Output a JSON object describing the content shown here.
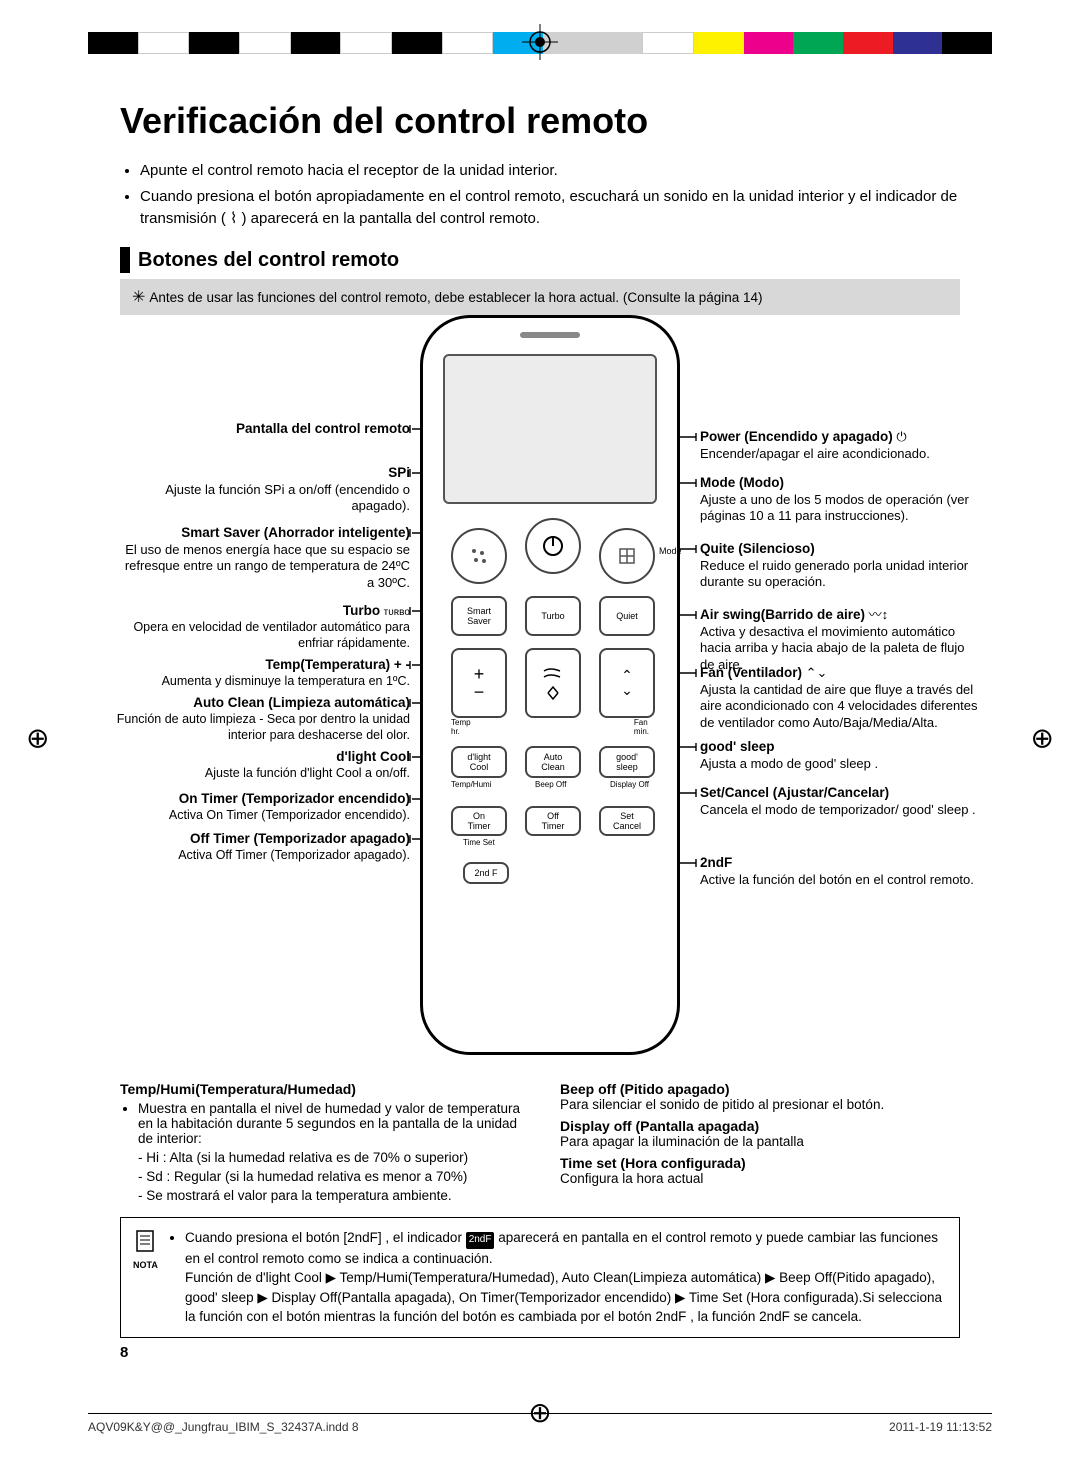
{
  "printbar_colors": [
    "#000000",
    "#ffffff",
    "#000000",
    "#ffffff",
    "#000000",
    "#ffffff",
    "#000000",
    "#ffffff",
    "#00aeef",
    "#d0d0d0",
    "#d0d0d0",
    "#ffffff",
    "#fff200",
    "#ec008c",
    "#00a651",
    "#ed1c24",
    "#2e3192",
    "#000000"
  ],
  "title": "Verificación del control remoto",
  "intro": [
    "Apunte el control remoto hacia el receptor de la unidad interior.",
    "Cuando presiona el botón apropiadamente en el control remoto, escuchará un sonido en la unidad interior y el indicador de transmisión ( ⌇ ) aparecerá en la pantalla del control remoto."
  ],
  "section_header": "Botones del control remoto",
  "graybox": "Antes de usar las funciones del control remoto, debe establecer la hora actual. (Consulte la página 14)",
  "buttons": {
    "mode": "Mode",
    "smart": "Smart\nSaver",
    "turbo": "Turbo",
    "quiet": "Quiet",
    "temp": "Temp\nhr.",
    "fan": "Fan\nmin.",
    "dlc": "d'light\nCool",
    "auto": "Auto\nClean",
    "good": "good'\nsleep",
    "row4txt": [
      "Temp/Humi",
      "Beep Off",
      "Display Off"
    ],
    "on": "On\nTimer",
    "off": "Off\nTimer",
    "set": "Set\nCancel",
    "row5txt": "Time Set",
    "twondf": "2nd F"
  },
  "left_labels": {
    "pantalla": "Pantalla del control remoto",
    "spi_t": "SPi",
    "spi_b": "Ajuste la función SPi a on/off (encendido o apagado).",
    "smart_t": "Smart Saver (Ahorrador inteligente)",
    "smart_b": "El uso de menos energía hace que su espacio se refresque entre un rango de temperatura de 24ºC a 30ºC.",
    "turbo_t": "Turbo",
    "turbo_b": "Opera en velocidad de ventilador automático para enfriar rápidamente.",
    "temp_t": "Temp(Temperatura) + -",
    "temp_b": "Aumenta y disminuye la temperatura en 1ºC.",
    "acl_t": "Auto Clean (Limpieza automática)",
    "acl_b": "Función de auto limpieza - Seca por dentro la unidad interior para deshacerse del olor.",
    "dlc_t": "d'light Cool",
    "dlc_b": "Ajuste la función d'light Cool a on/off.",
    "ont_t": "On Timer (Temporizador encendido)",
    "ont_b": "Activa On Timer (Temporizador encendido).",
    "oft_t": "Off Timer (Temporizador apagado)",
    "oft_b": "Activa Off Timer (Temporizador apagado)."
  },
  "right_labels": {
    "power_t": "Power (Encendido y apagado)",
    "power_b": "Encender/apagar el aire acondicionado.",
    "mode_t": "Mode (Modo)",
    "mode_b": "Ajuste a uno de los 5 modos de operación (ver páginas 10 a 11 para instrucciones).",
    "quiet_t": "Quite (Silencioso)",
    "quiet_b": "Reduce el ruido generado porla unidad interior durante su operación.",
    "air_t": "Air swing(Barrido de aire)",
    "air_b": "Activa y desactiva el movimiento automático hacia arriba y hacia abajo de la paleta de flujo de aire.",
    "fan_t": "Fan (Ventilador)",
    "fan_b": "Ajusta la cantidad de aire que fluye a través del aire acondicionado con 4 velocidades diferentes de ventilador como Auto/Baja/Media/Alta.",
    "good_t": "good' sleep",
    "good_b": "Ajusta a modo de good' sleep .",
    "set_t": "Set/Cancel (Ajustar/Cancelar)",
    "set_b": "Cancela el modo de temporizador/ good' sleep .",
    "f2_t": "2ndF",
    "f2_b": "Active la función del botón en el control remoto."
  },
  "btm_left": {
    "title": "Temp/Humi(Temperatura/Humedad)",
    "li": "Muestra en pantalla el nivel de humedad y valor de temperatura en la habitación durante 5 segundos en la pantalla de la unidad de interior:",
    "d1": "- Hi : Alta (si la humedad relativa es de 70% o superior)",
    "d2": "- Sd : Regular (si la humedad relativa es menor a 70%)",
    "d3": "- Se mostrará el valor para la temperatura ambiente."
  },
  "btm_right": {
    "bo_t": "Beep off (Pitido apagado)",
    "bo_b": "Para silenciar el sonido de pitido al presionar el botón.",
    "do_t": "Display off (Pantalla apagada)",
    "do_b": "Para apagar la iluminación de la pantalla",
    "ts_t": "Time set (Hora configurada)",
    "ts_b": "Configura la hora actual"
  },
  "note": {
    "p1": "Cuando presiona el botón [2ndF] , el indicador ",
    "p1b": " aparecerá en pantalla en el control remoto y puede cambiar las funciones en el control remoto como se indica a continuación.",
    "p2": "Función de d'light Cool ▶ Temp/Humi(Temperatura/Humedad), Auto Clean(Limpieza automática) ▶ Beep Off(Pitido apagado), good' sleep ▶ Display Off(Pantalla apagada), On Timer(Temporizador encendido) ▶ Time Set (Hora configurada).Si selecciona la función con el botón mientras la función del botón es cambiada por el botón 2ndF , la función 2ndF se cancela.",
    "label": "NOTA"
  },
  "pagenum": "8",
  "foot_left": "AQV09K&Y@@_Jungfrau_IBIM_S_32437A.indd   8",
  "foot_right": "2011-1-19   11:13:52"
}
